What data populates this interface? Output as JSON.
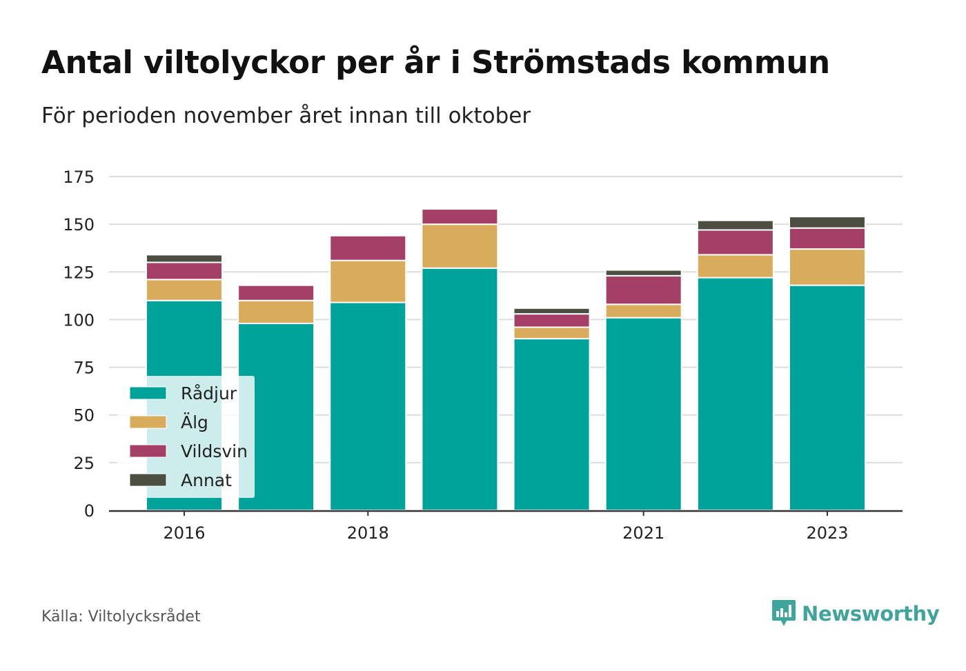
{
  "title": "Antal viltolyckor per år i Strömstads kommun",
  "subtitle": "För perioden november året innan till oktober",
  "source": "Källa: Viltolycksrådet",
  "brand": "Newsworthy",
  "chart_data": {
    "type": "bar",
    "stacked": true,
    "categories": [
      "2016",
      "2017",
      "2018",
      "2019",
      "2020",
      "2021",
      "2022",
      "2023"
    ],
    "x_tick_labels": [
      "2016",
      "2018",
      "2021",
      "2023"
    ],
    "series": [
      {
        "name": "Rådjur",
        "color": "#00a39a",
        "values": [
          110,
          98,
          109,
          127,
          90,
          101,
          122,
          118
        ]
      },
      {
        "name": "Älg",
        "color": "#d9ac5b",
        "values": [
          11,
          12,
          22,
          23,
          6,
          7,
          12,
          19
        ]
      },
      {
        "name": "Vildsvin",
        "color": "#a44065",
        "values": [
          9,
          8,
          13,
          8,
          7,
          15,
          13,
          11
        ]
      },
      {
        "name": "Annat",
        "color": "#4c4e41",
        "values": [
          4,
          0,
          0,
          0,
          3,
          3,
          5,
          6
        ]
      }
    ],
    "ylim": [
      0,
      175
    ],
    "yticks": [
      0,
      25,
      50,
      75,
      100,
      125,
      150,
      175
    ],
    "grid": true,
    "legend_position": "bottom-left"
  }
}
